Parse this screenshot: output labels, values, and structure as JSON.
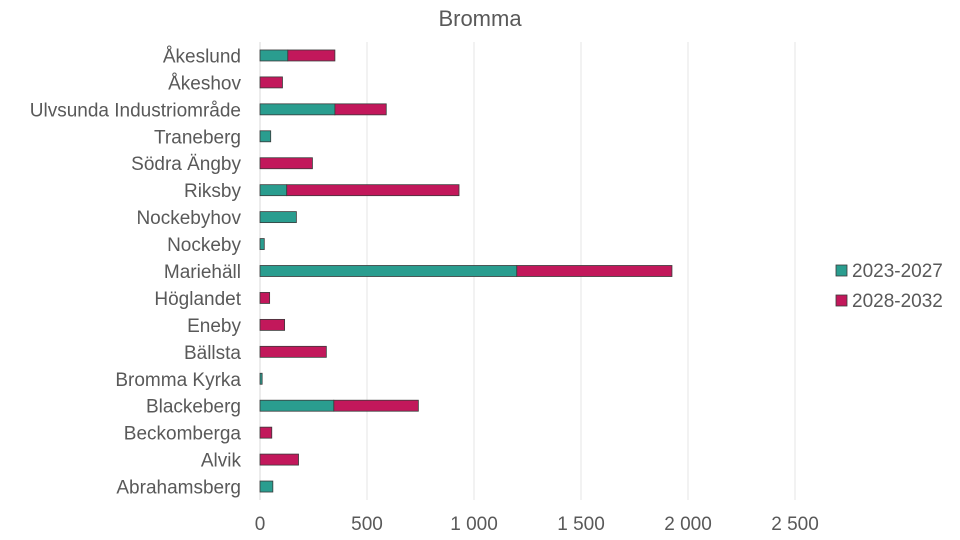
{
  "chart_data": {
    "type": "bar",
    "orientation": "horizontal",
    "stacked": true,
    "title": "Bromma",
    "xlabel": "",
    "ylabel": "",
    "xlim": [
      0,
      2500
    ],
    "x_ticks": [
      0,
      500,
      1000,
      1500,
      2000,
      2500
    ],
    "x_tick_labels": [
      "0",
      "500",
      "1 000",
      "1 500",
      "2 000",
      "2 500"
    ],
    "grid": "vertical",
    "legend_position": "right",
    "categories": [
      "Åkeslund",
      "Åkeshov",
      "Ulvsunda Industriområde",
      "Traneberg",
      "Södra Ängby",
      "Riksby",
      "Nockebyhov",
      "Nockeby",
      "Mariehäll",
      "Höglandet",
      "Eneby",
      "Bällsta",
      "Bromma Kyrka",
      "Blackeberg",
      "Beckomberga",
      "Alvik",
      "Abrahamsberg"
    ],
    "series": [
      {
        "name": "2023-2027",
        "color": "#2a9d8f",
        "values": [
          130,
          0,
          350,
          50,
          0,
          125,
          170,
          20,
          1200,
          0,
          0,
          0,
          10,
          345,
          0,
          0,
          60
        ]
      },
      {
        "name": "2028-2032",
        "color": "#c2185b",
        "values": [
          220,
          105,
          240,
          0,
          245,
          805,
          0,
          0,
          725,
          45,
          115,
          310,
          0,
          395,
          55,
          180,
          0
        ]
      }
    ]
  }
}
